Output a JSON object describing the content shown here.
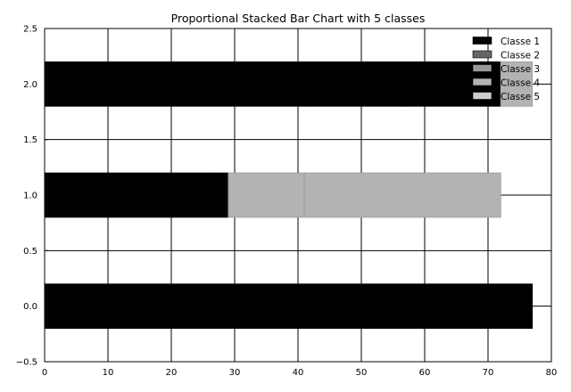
{
  "chart_data": {
    "type": "bar",
    "orientation": "horizontal",
    "stacked": true,
    "title": "Proportional Stacked Bar Chart with 5 classes",
    "xlabel": "",
    "ylabel": "",
    "xlim": [
      0,
      80
    ],
    "ylim": [
      -0.5,
      2.5
    ],
    "xticks": [
      0,
      10,
      20,
      30,
      40,
      50,
      60,
      70,
      80
    ],
    "yticks": [
      -0.5,
      0.0,
      0.5,
      1.0,
      1.5,
      2.0,
      2.5
    ],
    "ytick_labels": [
      "−0.5",
      "0.0",
      "0.5",
      "1.0",
      "1.5",
      "2.0",
      "2.5"
    ],
    "grid": true,
    "bar_height": 0.4,
    "categories": [
      0,
      1,
      2
    ],
    "series": [
      {
        "name": "Classe 1",
        "color": "#000000",
        "values": [
          14,
          26,
          41
        ]
      },
      {
        "name": "Classe 2",
        "color": "#000000",
        "values": [
          50,
          3,
          16
        ]
      },
      {
        "name": "Classe 3",
        "color": "#000000",
        "values": [
          13,
          0,
          15
        ]
      },
      {
        "name": "Classe 4",
        "color": "#b3b3b3",
        "values": [
          0,
          12,
          0
        ]
      },
      {
        "name": "Classe 5",
        "color": "#b3b3b3",
        "values": [
          0,
          31,
          5
        ]
      }
    ],
    "legend": {
      "placement": "top-right",
      "entries": [
        {
          "label": "Classe 1",
          "color": "#000000"
        },
        {
          "label": "Classe 2",
          "color": "#666666"
        },
        {
          "label": "Classe 3",
          "color": "#999999"
        },
        {
          "label": "Classe 4",
          "color": "#b3b3b3"
        },
        {
          "label": "Classe 5",
          "color": "#cccccc"
        }
      ]
    }
  }
}
